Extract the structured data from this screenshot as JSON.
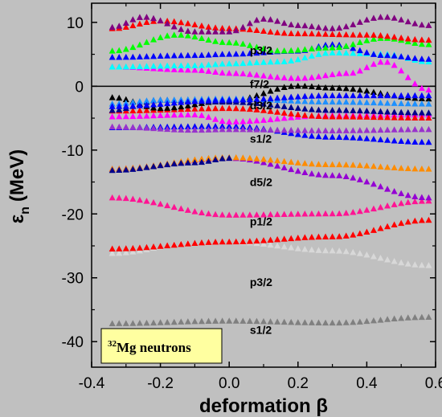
{
  "chart_data": {
    "type": "scatter",
    "title": "",
    "xlabel": "deformation β",
    "ylabel_main": "ε",
    "ylabel_sub": "n",
    "ylabel_unit": "(MeV)",
    "xlim": [
      -0.4,
      0.6
    ],
    "ylim": [
      -44,
      13
    ],
    "x_ticks": [
      -0.4,
      -0.2,
      0.0,
      0.2,
      0.4,
      0.6
    ],
    "x_tick_labels": [
      "-0.4",
      "-0.2",
      "0.0",
      "0.2",
      "0.4",
      "0.6"
    ],
    "y_ticks": [
      10,
      0,
      -10,
      -20,
      -30,
      -40
    ],
    "y_tick_labels": [
      "10",
      "0",
      "-10",
      "-20",
      "-30",
      "-40"
    ],
    "zero_line": 0,
    "legend": {
      "superscript": "32",
      "text": "Mg neutrons",
      "position": "bottom-left"
    },
    "level_labels": [
      {
        "text": "p3/2",
        "x": 0.06,
        "y": 5.0
      },
      {
        "text": "f7/2",
        "x": 0.06,
        "y": -0.3
      },
      {
        "text": "d3/2",
        "x": 0.06,
        "y": -3.6
      },
      {
        "text": "s1/2",
        "x": 0.06,
        "y": -8.8
      },
      {
        "text": "d5/2",
        "x": 0.06,
        "y": -15.6
      },
      {
        "text": "p1/2",
        "x": 0.06,
        "y": -21.8
      },
      {
        "text": "p3/2",
        "x": 0.06,
        "y": -31.3
      },
      {
        "text": "s1/2",
        "x": 0.06,
        "y": -38.8
      }
    ],
    "x": [
      -0.34,
      -0.32,
      -0.3,
      -0.28,
      -0.26,
      -0.24,
      -0.22,
      -0.2,
      -0.18,
      -0.16,
      -0.14,
      -0.12,
      -0.1,
      -0.08,
      -0.06,
      -0.04,
      -0.02,
      0.0,
      0.02,
      0.04,
      0.06,
      0.08,
      0.1,
      0.12,
      0.14,
      0.16,
      0.18,
      0.2,
      0.22,
      0.24,
      0.26,
      0.28,
      0.3,
      0.32,
      0.34,
      0.36,
      0.38,
      0.4,
      0.42,
      0.44,
      0.46,
      0.48,
      0.5,
      0.52,
      0.54,
      0.56,
      0.58
    ],
    "series": [
      {
        "color": "#808080",
        "anchors": [
          [
            -0.34,
            -37.2
          ],
          [
            0.0,
            -36.8
          ],
          [
            0.3,
            -37.1
          ],
          [
            0.58,
            -36.2
          ]
        ]
      },
      {
        "color": "#d8d8d8",
        "anchors": [
          [
            -0.34,
            -26.2
          ],
          [
            -0.1,
            -24.6
          ],
          [
            0.0,
            -24.4
          ],
          [
            0.3,
            -25.8
          ],
          [
            0.58,
            -28.1
          ]
        ]
      },
      {
        "color": "#ff0000",
        "anchors": [
          [
            -0.34,
            -25.5
          ],
          [
            0.0,
            -24.4
          ],
          [
            0.3,
            -23.6
          ],
          [
            0.58,
            -21.0
          ]
        ]
      },
      {
        "color": "#ff1493",
        "anchors": [
          [
            -0.34,
            -17.5
          ],
          [
            0.0,
            -20.2
          ],
          [
            0.3,
            -20.0
          ],
          [
            0.58,
            -18.0
          ]
        ]
      },
      {
        "color": "#9400d3",
        "anchors": [
          [
            -0.34,
            -13.0
          ],
          [
            0.0,
            -11.3
          ],
          [
            0.3,
            -14.0
          ],
          [
            0.58,
            -17.5
          ]
        ]
      },
      {
        "color": "#ff8c00",
        "anchors": [
          [
            -0.34,
            -13.0
          ],
          [
            0.0,
            -11.2
          ],
          [
            0.3,
            -12.3
          ],
          [
            0.58,
            -13.0
          ]
        ]
      },
      {
        "color": "#00008b",
        "anchors": [
          [
            -0.34,
            -13.2
          ],
          [
            -0.1,
            -12.0
          ],
          [
            0.0,
            -11.3
          ]
        ]
      },
      {
        "color": "#0000ff",
        "anchors": [
          [
            -0.34,
            -6.5
          ],
          [
            0.0,
            -6.3
          ],
          [
            0.3,
            -8.0
          ],
          [
            0.58,
            -8.8
          ]
        ]
      },
      {
        "color": "#9932cc",
        "anchors": [
          [
            -0.34,
            -6.4
          ],
          [
            -0.1,
            -6.9
          ],
          [
            0.0,
            -6.8
          ],
          [
            0.3,
            -7.0
          ],
          [
            0.58,
            -6.8
          ]
        ]
      },
      {
        "color": "#ff00ff",
        "anchors": [
          [
            -0.34,
            -4.8
          ],
          [
            -0.1,
            -4.5
          ],
          [
            0.0,
            -5.6
          ],
          [
            0.3,
            -4.6
          ],
          [
            0.58,
            -4.5
          ]
        ]
      },
      {
        "color": "#ff0000",
        "anchors": [
          [
            -0.34,
            -3.9
          ],
          [
            0.0,
            -3.5
          ],
          [
            0.3,
            -4.8
          ],
          [
            0.58,
            -5.0
          ]
        ]
      },
      {
        "color": "#000000",
        "anchors": [
          [
            -0.34,
            -1.8
          ],
          [
            -0.2,
            -3.5
          ],
          [
            0.0,
            -2.3
          ],
          [
            0.2,
            0.0
          ],
          [
            0.3,
            -0.3
          ],
          [
            0.58,
            -2.0
          ]
        ]
      },
      {
        "color": "#00008b",
        "anchors": [
          [
            -0.34,
            -3.8
          ],
          [
            -0.2,
            -2.2
          ],
          [
            0.0,
            -2.5
          ],
          [
            0.3,
            -3.8
          ],
          [
            0.58,
            -4.2
          ]
        ]
      },
      {
        "color": "#1e90ff",
        "anchors": [
          [
            -0.34,
            -2.8
          ],
          [
            -0.2,
            -2.2
          ],
          [
            0.0,
            -2.0
          ],
          [
            0.3,
            -2.5
          ],
          [
            0.58,
            -2.8
          ]
        ]
      },
      {
        "color": "#0000ff",
        "anchors": [
          [
            -0.34,
            -3.2
          ],
          [
            0.0,
            -2.2
          ],
          [
            0.3,
            -1.5
          ],
          [
            0.58,
            -1.5
          ]
        ]
      },
      {
        "color": "#ff00ff",
        "anchors": [
          [
            -0.34,
            3.0
          ],
          [
            -0.1,
            2.5
          ],
          [
            0.0,
            2.0
          ],
          [
            0.2,
            1.2
          ],
          [
            0.35,
            2.0
          ],
          [
            0.45,
            3.8
          ],
          [
            0.58,
            -0.6
          ]
        ]
      },
      {
        "color": "#00ffff",
        "anchors": [
          [
            -0.34,
            3.0
          ],
          [
            -0.1,
            3.2
          ],
          [
            0.0,
            3.5
          ],
          [
            0.15,
            3.8
          ],
          [
            0.3,
            5.2
          ],
          [
            0.45,
            5.0
          ],
          [
            0.58,
            3.8
          ]
        ]
      },
      {
        "color": "#0000ff",
        "anchors": [
          [
            -0.34,
            4.5
          ],
          [
            -0.1,
            4.8
          ],
          [
            0.0,
            5.0
          ],
          [
            0.2,
            5.5
          ],
          [
            0.3,
            6.5
          ],
          [
            0.45,
            4.8
          ],
          [
            0.58,
            4.2
          ]
        ]
      },
      {
        "color": "#00ff00",
        "anchors": [
          [
            -0.34,
            5.5
          ],
          [
            -0.15,
            8.0
          ],
          [
            0.0,
            6.8
          ],
          [
            0.15,
            5.5
          ],
          [
            0.3,
            6.0
          ],
          [
            0.45,
            7.5
          ],
          [
            0.58,
            6.5
          ]
        ]
      },
      {
        "color": "#ff0000",
        "anchors": [
          [
            -0.34,
            9.0
          ],
          [
            -0.2,
            10.2
          ],
          [
            0.0,
            9.0
          ],
          [
            0.2,
            8.2
          ],
          [
            0.4,
            8.0
          ],
          [
            0.58,
            7.2
          ]
        ]
      },
      {
        "color": "#800080",
        "anchors": [
          [
            -0.34,
            9.2
          ],
          [
            -0.25,
            10.8
          ],
          [
            -0.1,
            8.5
          ],
          [
            0.0,
            8.5
          ],
          [
            0.1,
            10.5
          ],
          [
            0.2,
            9.5
          ],
          [
            0.3,
            9.0
          ],
          [
            0.45,
            10.8
          ],
          [
            0.58,
            9.5
          ]
        ]
      }
    ]
  }
}
